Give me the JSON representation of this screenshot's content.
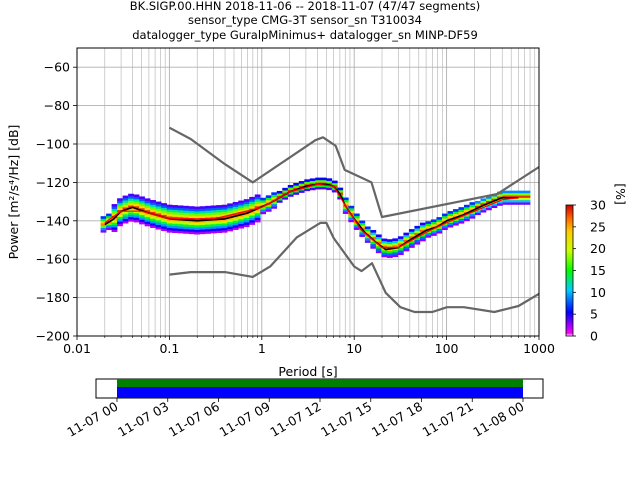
{
  "chart_data": {
    "type": "heatmap",
    "title": [
      "BK.SIGP.00.HHN   2018-11-06 -- 2018-11-07  (47/47 segments)",
      "sensor_type CMG-3T sensor_sn T310034",
      "datalogger_type GuralpMinimus+ datalogger_sn MINP-DF59"
    ],
    "xlabel": "Period [s]",
    "ylabel": "Power [m²/s⁴/Hz] [dB]",
    "x_scale": "log",
    "xlim": [
      0.01,
      1000
    ],
    "ylim": [
      -200,
      -50
    ],
    "x_ticks": [
      0.01,
      0.1,
      1,
      10,
      100,
      1000
    ],
    "x_tick_labels": [
      "0.01",
      "0.1",
      "1",
      "10",
      "100",
      "1000"
    ],
    "y_ticks": [
      -200,
      -180,
      -160,
      -140,
      -120,
      -100,
      -80,
      -60
    ],
    "grid": true,
    "colorbar": {
      "label": "[%]",
      "range": [
        0,
        30
      ],
      "ticks": [
        0,
        5,
        10,
        15,
        20,
        25,
        30
      ]
    },
    "series": [
      {
        "name": "",
        "role": "noise model upper",
        "color": "#666666",
        "x": [
          0.1,
          0.17,
          0.4,
          0.8,
          3.8,
          4.6,
          6.3,
          7.9,
          15.4,
          20,
          354.8,
          1000
        ],
        "y": [
          -91.5,
          -97.4,
          -110.5,
          -120,
          -98,
          -96.5,
          -101,
          -113.5,
          -120,
          -138,
          -126,
          -112
        ]
      },
      {
        "name": "",
        "role": "noise model lower",
        "color": "#666666",
        "x": [
          0.1,
          0.17,
          0.4,
          0.8,
          1.24,
          2.4,
          4.3,
          5,
          6,
          10,
          12,
          15.6,
          21.9,
          31.6,
          45,
          70,
          101,
          154,
          328,
          600,
          1000
        ],
        "y": [
          -168,
          -166.7,
          -166.7,
          -169.2,
          -163.7,
          -148.6,
          -141.1,
          -141.1,
          -149,
          -163.8,
          -166.2,
          -162.1,
          -177.5,
          -185,
          -187.5,
          -187.5,
          -185,
          -185,
          -187.5,
          -184.4,
          -178
        ]
      },
      {
        "name": "",
        "role": "mean PSD",
        "color": "#000000",
        "x": [
          0.02,
          0.025,
          0.03,
          0.04,
          0.06,
          0.1,
          0.2,
          0.4,
          0.7,
          1.2,
          2,
          3,
          4,
          5,
          6,
          7,
          8,
          10,
          13,
          17,
          22,
          30,
          40,
          60,
          80,
          100,
          150,
          250,
          400,
          600
        ],
        "y": [
          -142,
          -139,
          -135,
          -133,
          -136,
          -139,
          -140,
          -139,
          -136,
          -131,
          -125,
          -122,
          -121,
          -121,
          -122,
          -126,
          -132,
          -139,
          -146,
          -151,
          -155,
          -154,
          -150,
          -145,
          -143,
          -140,
          -137,
          -132,
          -128,
          -128
        ]
      },
      {
        "name": "",
        "role": "mode PSD",
        "color": "#ff0000",
        "x": [
          0.02,
          0.03,
          0.05,
          0.1,
          0.3,
          1,
          2,
          4,
          6,
          8,
          12,
          20,
          30,
          60,
          100,
          200,
          400,
          600
        ],
        "y": [
          -141,
          -135,
          -135,
          -139,
          -139,
          -133,
          -125,
          -121,
          -122,
          -132,
          -145,
          -154,
          -154,
          -146,
          -141,
          -135,
          -129,
          -128
        ]
      }
    ],
    "time_coverage": {
      "tick_labels": [
        "11-07 00",
        "11-07 03",
        "11-07 06",
        "11-07 09",
        "11-07 12",
        "11-07 15",
        "11-07 18",
        "11-07 21",
        "11-08 00"
      ],
      "bar_colors": {
        "coverage": "#0000ff",
        "data": "#008000"
      }
    }
  }
}
